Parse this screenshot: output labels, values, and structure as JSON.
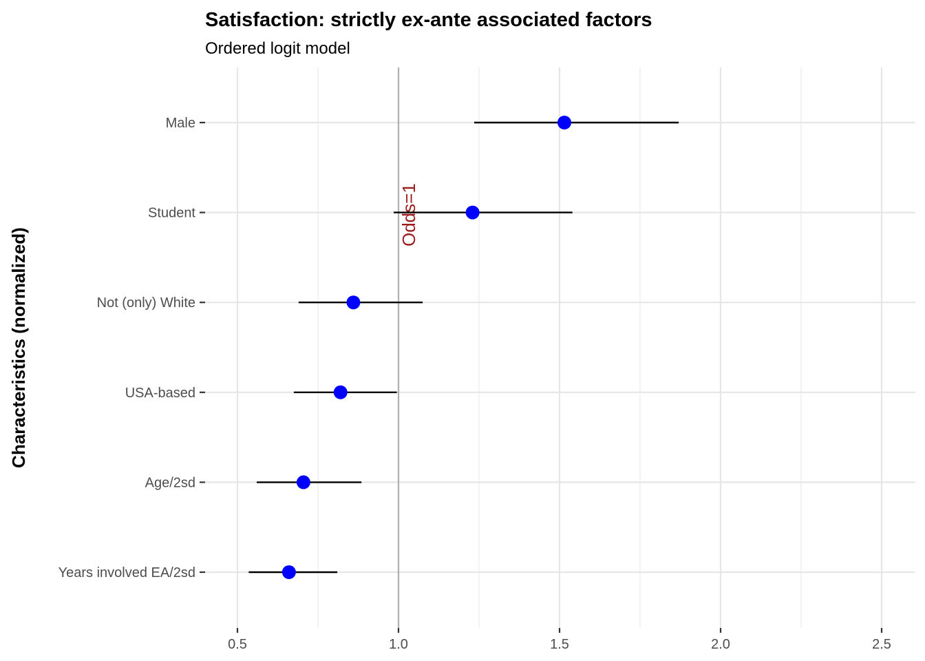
{
  "chart_data": {
    "type": "scatter",
    "subtype": "forest-plot",
    "title": "Satisfaction: strictly ex-ante associated factors",
    "subtitle": "Ordered logit model",
    "xlabel": "",
    "ylabel": "Characteristics (normalized)",
    "xlim": [
      0.45,
      2.6
    ],
    "x_ticks": [
      0.5,
      1.0,
      1.5,
      2.0,
      2.5
    ],
    "x_tick_labels": [
      "0.5",
      "1.0",
      "1.5",
      "2.0",
      "2.5"
    ],
    "grid": true,
    "reference_line": {
      "x": 1.0,
      "label": "Odds=1",
      "color": "#b0b0b0",
      "label_color": "#9b1c1c"
    },
    "point_color": "#0000ff",
    "interval_color": "#000000",
    "categories": [
      "Male",
      "Student",
      "Not (only) White",
      "USA-based",
      "Age/2sd",
      "Years involved EA/2sd"
    ],
    "estimates": [
      1.515,
      1.23,
      0.86,
      0.82,
      0.705,
      0.66
    ],
    "ci_low": [
      1.235,
      0.985,
      0.69,
      0.675,
      0.56,
      0.535
    ],
    "ci_high": [
      1.87,
      1.54,
      1.075,
      0.995,
      0.885,
      0.81
    ]
  }
}
